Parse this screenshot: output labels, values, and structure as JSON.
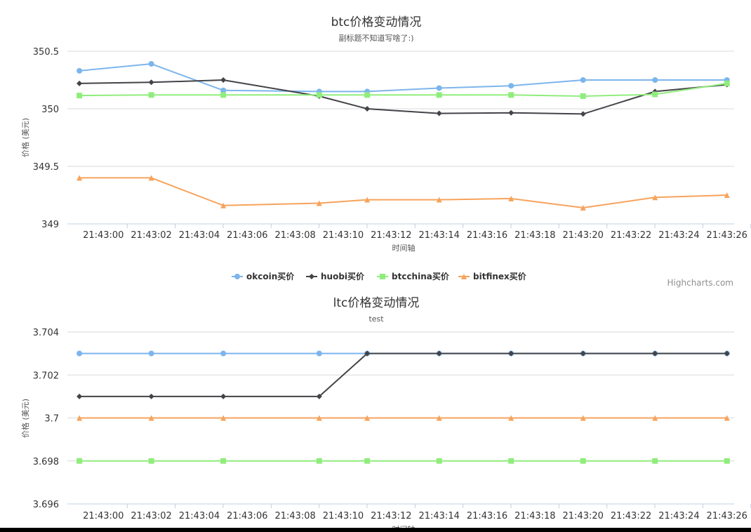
{
  "credits": "Highcharts.com",
  "chart_data": [
    {
      "type": "line",
      "title": "btc价格变动情况",
      "subtitle": "副标题不知道写啥了:)",
      "xlabel": "时间轴",
      "ylabel": "价格 (美元)",
      "ylim": [
        349,
        350.5
      ],
      "yticks": [
        349,
        349.5,
        350,
        350.5
      ],
      "ytick_labels": [
        "349",
        "349.5",
        "350",
        "350.5"
      ],
      "xticks": [
        "21:43:00",
        "21:43:02",
        "21:43:04",
        "21:43:06",
        "21:43:08",
        "21:43:10",
        "21:43:12",
        "21:43:14",
        "21:43:16",
        "21:43:18",
        "21:43:20",
        "21:43:22",
        "21:43:24",
        "21:43:26"
      ],
      "x": [
        "21:42:59",
        "21:43:02",
        "21:43:05",
        "21:43:09",
        "21:43:11",
        "21:43:14",
        "21:43:17",
        "21:43:20",
        "21:43:23",
        "21:43:26"
      ],
      "series": [
        {
          "name": "okcoin买价",
          "color": "#7cb5ec",
          "marker": "circle",
          "values": [
            350.33,
            350.39,
            350.16,
            350.15,
            350.15,
            350.18,
            350.2,
            350.25,
            350.25,
            350.25
          ]
        },
        {
          "name": "huobi买价",
          "color": "#434348",
          "marker": "diamond",
          "values": [
            350.22,
            350.23,
            350.25,
            350.11,
            350.0,
            349.96,
            349.965,
            349.955,
            350.15,
            350.21
          ]
        },
        {
          "name": "btcchina买价",
          "color": "#90ed7d",
          "marker": "square",
          "values": [
            350.115,
            350.12,
            350.12,
            350.12,
            350.12,
            350.12,
            350.12,
            350.11,
            350.125,
            350.22
          ]
        },
        {
          "name": "bitfinex买价",
          "color": "#f7a35c",
          "marker": "triangle",
          "values": [
            349.4,
            349.4,
            349.16,
            349.18,
            349.21,
            349.21,
            349.22,
            349.14,
            349.23,
            349.25
          ]
        }
      ]
    },
    {
      "type": "line",
      "title": "ltc价格变动情况",
      "subtitle": "test",
      "xlabel": "时间轴",
      "ylabel": "价格 (美元)",
      "ylim": [
        3.696,
        3.704
      ],
      "yticks": [
        3.696,
        3.698,
        3.7,
        3.702,
        3.704
      ],
      "ytick_labels": [
        "3.696",
        "3.698",
        "3.7",
        "3.702",
        "3.704"
      ],
      "xticks": [
        "21:43:00",
        "21:43:02",
        "21:43:04",
        "21:43:06",
        "21:43:08",
        "21:43:10",
        "21:43:12",
        "21:43:14",
        "21:43:16",
        "21:43:18",
        "21:43:20",
        "21:43:22",
        "21:43:24",
        "21:43:26"
      ],
      "x": [
        "21:42:59",
        "21:43:02",
        "21:43:05",
        "21:43:09",
        "21:43:11",
        "21:43:14",
        "21:43:17",
        "21:43:20",
        "21:43:23",
        "21:43:26"
      ],
      "series": [
        {
          "name": "okcoin买价",
          "color": "#7cb5ec",
          "marker": "circle",
          "values": [
            3.703,
            3.703,
            3.703,
            3.703,
            3.703,
            3.703,
            3.703,
            3.703,
            3.703,
            3.703
          ]
        },
        {
          "name": "huobi买价",
          "color": "#434348",
          "marker": "diamond",
          "values": [
            3.701,
            3.701,
            3.701,
            3.701,
            3.703,
            3.703,
            3.703,
            3.703,
            3.703,
            3.703
          ]
        },
        {
          "name": "btcchina买价",
          "color": "#90ed7d",
          "marker": "square",
          "values": [
            3.698,
            3.698,
            3.698,
            3.698,
            3.698,
            3.698,
            3.698,
            3.698,
            3.698,
            3.698
          ]
        },
        {
          "name": "bitfinex买价",
          "color": "#f7a35c",
          "marker": "triangle",
          "values": [
            3.7,
            3.7,
            3.7,
            3.7,
            3.7,
            3.7,
            3.7,
            3.7,
            3.7,
            3.7
          ]
        }
      ]
    }
  ]
}
